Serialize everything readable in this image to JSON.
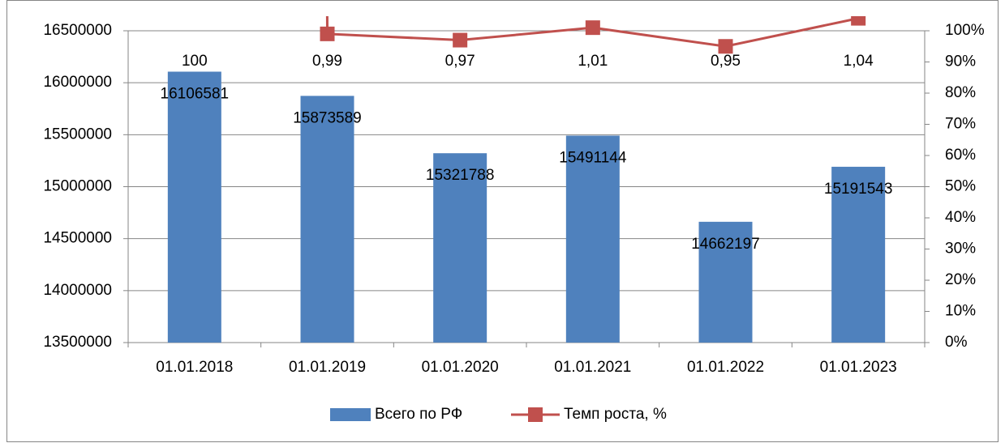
{
  "chart_data": {
    "type": "bar",
    "categories": [
      "01.01.2018",
      "01.01.2019",
      "01.01.2020",
      "01.01.2021",
      "01.01.2022",
      "01.01.2023"
    ],
    "series": [
      {
        "name": "Всего по РФ",
        "type": "bar",
        "color": "#4f81bd",
        "values": [
          16106581,
          15873589,
          15321788,
          15491144,
          14662197,
          15191543
        ]
      },
      {
        "name": "Темп роста, %",
        "type": "line",
        "axis": "y2",
        "color": "#c0504d",
        "values": [
          100,
          0.99,
          0.97,
          1.01,
          0.95,
          1.04
        ],
        "value_labels": [
          "100",
          "0,99",
          "0,97",
          "1,01",
          "0,95",
          "1,04"
        ]
      }
    ],
    "ylim": [
      13500000,
      16500000
    ],
    "yticks": [
      13500000,
      14000000,
      14500000,
      15000000,
      15500000,
      16000000,
      16500000
    ],
    "y2lim": [
      0,
      1
    ],
    "y2ticks": [
      {
        "value": 0,
        "label": "0%"
      },
      {
        "value": 0.1,
        "label": "10%"
      },
      {
        "value": 0.2,
        "label": "20%"
      },
      {
        "value": 0.3,
        "label": "30%"
      },
      {
        "value": 0.4,
        "label": "40%"
      },
      {
        "value": 0.5,
        "label": "50%"
      },
      {
        "value": 0.6,
        "label": "60%"
      },
      {
        "value": 0.7,
        "label": "70%"
      },
      {
        "value": 0.8,
        "label": "80%"
      },
      {
        "value": 0.9,
        "label": "90%"
      },
      {
        "value": 1,
        "label": "100%"
      }
    ],
    "grid": true,
    "legend": "bottom"
  }
}
